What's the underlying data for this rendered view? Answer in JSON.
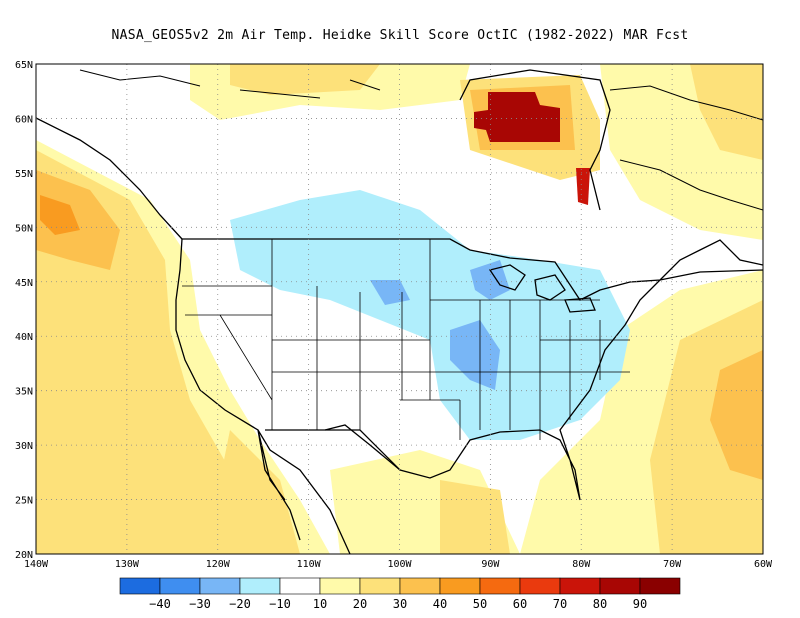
{
  "title": "NASA_GEOS5v2  2m Air Temp. Heidke Skill Score OctIC (1982-2022) MAR Fcst",
  "map": {
    "lon_range": [
      -140,
      -60
    ],
    "lat_range": [
      20,
      65
    ],
    "lon_ticks": [
      {
        "value": -140,
        "label": "140W"
      },
      {
        "value": -130,
        "label": "130W"
      },
      {
        "value": -120,
        "label": "120W"
      },
      {
        "value": -110,
        "label": "110W"
      },
      {
        "value": -100,
        "label": "100W"
      },
      {
        "value": -90,
        "label": "90W"
      },
      {
        "value": -80,
        "label": "80W"
      },
      {
        "value": -70,
        "label": "70W"
      },
      {
        "value": -60,
        "label": "60W"
      }
    ],
    "lat_ticks": [
      {
        "value": 20,
        "label": "20N"
      },
      {
        "value": 25,
        "label": "25N"
      },
      {
        "value": 30,
        "label": "30N"
      },
      {
        "value": 35,
        "label": "35N"
      },
      {
        "value": 40,
        "label": "40N"
      },
      {
        "value": 45,
        "label": "45N"
      },
      {
        "value": 50,
        "label": "50N"
      },
      {
        "value": 55,
        "label": "55N"
      },
      {
        "value": 60,
        "label": "60N"
      },
      {
        "value": 65,
        "label": "65N"
      }
    ],
    "grid": true
  },
  "colorbar": {
    "colors": [
      "#1c6ce0",
      "#3f8ef0",
      "#78b6f6",
      "#b0eefc",
      "#ffffff",
      "#fffaaa",
      "#fde17a",
      "#fcc14e",
      "#f99b20",
      "#f56a10",
      "#ea3a0e",
      "#ca1409",
      "#a80604",
      "#8a0000"
    ],
    "labels": [
      "−40",
      "−30",
      "−20",
      "−10",
      "10",
      "20",
      "30",
      "40",
      "50",
      "60",
      "70",
      "80",
      "90"
    ]
  }
}
